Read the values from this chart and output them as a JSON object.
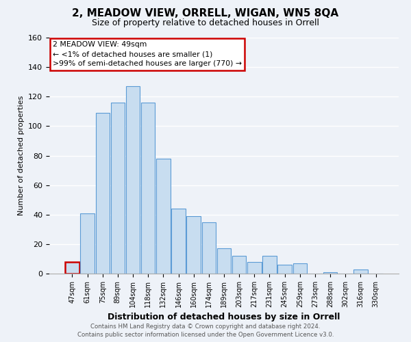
{
  "title": "2, MEADOW VIEW, ORRELL, WIGAN, WN5 8QA",
  "subtitle": "Size of property relative to detached houses in Orrell",
  "xlabel": "Distribution of detached houses by size in Orrell",
  "ylabel": "Number of detached properties",
  "bar_labels": [
    "47sqm",
    "61sqm",
    "75sqm",
    "89sqm",
    "104sqm",
    "118sqm",
    "132sqm",
    "146sqm",
    "160sqm",
    "174sqm",
    "189sqm",
    "203sqm",
    "217sqm",
    "231sqm",
    "245sqm",
    "259sqm",
    "273sqm",
    "288sqm",
    "302sqm",
    "316sqm",
    "330sqm"
  ],
  "bar_values": [
    8,
    41,
    109,
    116,
    127,
    116,
    78,
    44,
    39,
    35,
    17,
    12,
    8,
    12,
    6,
    7,
    0,
    1,
    0,
    3,
    0
  ],
  "bar_color": "#c8ddf0",
  "bar_edge_color": "#5b9bd5",
  "highlight_bar_index": 0,
  "highlight_color": "#cc0000",
  "ylim": [
    0,
    160
  ],
  "yticks": [
    0,
    20,
    40,
    60,
    80,
    100,
    120,
    140,
    160
  ],
  "annotation_title": "2 MEADOW VIEW: 49sqm",
  "annotation_line1": "← <1% of detached houses are smaller (1)",
  "annotation_line2": ">99% of semi-detached houses are larger (770) →",
  "annotation_box_color": "#ffffff",
  "annotation_box_edge": "#cc0000",
  "footer_line1": "Contains HM Land Registry data © Crown copyright and database right 2024.",
  "footer_line2": "Contains public sector information licensed under the Open Government Licence v3.0.",
  "background_color": "#eef2f8",
  "grid_color": "#ffffff",
  "title_fontsize": 11,
  "subtitle_fontsize": 9,
  "ylabel_fontsize": 8,
  "xlabel_fontsize": 9,
  "tick_fontsize": 8,
  "xtick_fontsize": 7
}
